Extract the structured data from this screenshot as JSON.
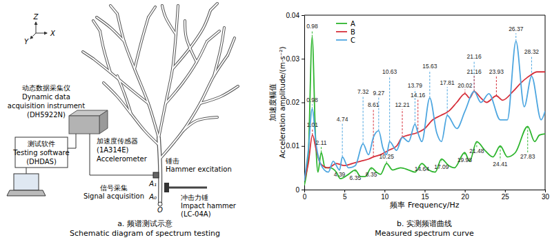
{
  "chart_data": {
    "type": "line",
    "title": "b. 实测频谱曲线",
    "subtitle": "Measured spectrum curve",
    "x_label": "频率 Frequency/Hz",
    "y_label": [
      "加速度幅值",
      "Acceleration amplitude/(m·s⁻²)"
    ],
    "xlim": [
      0,
      30
    ],
    "ylim": [
      0,
      0.04
    ],
    "xticks": [
      0,
      5,
      10,
      15,
      20,
      25,
      30
    ],
    "yticks": [
      0,
      0.01,
      0.02,
      0.03,
      0.04
    ],
    "grid": false,
    "legend": "upper left",
    "series": [
      {
        "name": "A",
        "color": "#2db52d",
        "x": [
          0,
          0.5,
          0.98,
          1.4,
          1.7,
          2.11,
          2.6,
          3.2,
          4,
          4.5,
          5.5,
          6.35,
          7,
          7.6,
          8.35,
          9,
          9.5,
          10.25,
          11,
          12,
          13,
          13.8,
          14.64,
          15.5,
          16.3,
          17.09,
          18,
          18.7,
          19.98,
          20.6,
          21.48,
          22.5,
          23.5,
          24.41,
          25.3,
          26.3,
          27.83,
          28.7,
          29.3,
          30
        ],
        "values": [
          0.001,
          0.008,
          0.035,
          0.012,
          0.004,
          0.0085,
          0.005,
          0.005,
          0.004,
          0.0025,
          0.0035,
          0.0045,
          0.003,
          0.003,
          0.005,
          0.004,
          0.0035,
          0.006,
          0.0045,
          0.005,
          0.0045,
          0.004,
          0.006,
          0.0045,
          0.004,
          0.007,
          0.0055,
          0.005,
          0.0085,
          0.0065,
          0.011,
          0.009,
          0.0075,
          0.01,
          0.0075,
          0.0085,
          0.0145,
          0.011,
          0.0125,
          0.0128
        ]
      },
      {
        "name": "B",
        "color": "#d62f3a",
        "x": [
          0,
          0.5,
          1.01,
          1.5,
          2,
          3,
          4,
          5,
          6,
          7,
          8,
          8.61,
          9.5,
          10.5,
          11.5,
          12.21,
          13,
          14,
          15,
          16,
          17,
          18,
          19,
          20.02,
          20.6,
          21.16,
          22,
          22.7,
          23.93,
          24.7,
          26,
          27,
          28,
          29,
          30
        ],
        "values": [
          0.002,
          0.006,
          0.0125,
          0.009,
          0.006,
          0.005,
          0.006,
          0.0055,
          0.006,
          0.0065,
          0.007,
          0.0075,
          0.008,
          0.009,
          0.01,
          0.012,
          0.0125,
          0.013,
          0.014,
          0.016,
          0.017,
          0.018,
          0.02,
          0.022,
          0.021,
          0.0225,
          0.021,
          0.02,
          0.0215,
          0.0205,
          0.0225,
          0.0245,
          0.026,
          0.027,
          0.027
        ]
      },
      {
        "name": "C",
        "color": "#4da6e0",
        "x": [
          0,
          0.5,
          0.98,
          1.5,
          2,
          3,
          3.6,
          4.39,
          4.74,
          5.5,
          6.35,
          7.32,
          8,
          8.61,
          9.27,
          9.8,
          10.25,
          10.63,
          11.5,
          12.21,
          13,
          13.79,
          14.16,
          14.64,
          15.63,
          16.5,
          17.09,
          17.81,
          19,
          20.02,
          21.16,
          22,
          23,
          24.41,
          25.3,
          26.37,
          27.4,
          28.32,
          29.5,
          30
        ],
        "values": [
          0.002,
          0.009,
          0.0185,
          0.01,
          0.006,
          0.004,
          0.0065,
          0.0045,
          0.0075,
          0.005,
          0.0055,
          0.0105,
          0.008,
          0.012,
          0.0135,
          0.0095,
          0.008,
          0.011,
          0.009,
          0.012,
          0.011,
          0.015,
          0.013,
          0.011,
          0.021,
          0.013,
          0.011,
          0.017,
          0.014,
          0.018,
          0.0225,
          0.02,
          0.022,
          0.016,
          0.016,
          0.034,
          0.019,
          0.026,
          0.016,
          0.018
        ]
      }
    ],
    "annotations": [
      {
        "text": "0.98",
        "x": 0.98,
        "y": 0.035,
        "label_y": 0.0375,
        "series": "A"
      },
      {
        "text": "0.98",
        "x": 0.98,
        "y": 0.0185,
        "label_y": 0.0205,
        "series": "C"
      },
      {
        "text": "1.01",
        "x": 1.01,
        "y": 0.0125,
        "label_y": 0.0148,
        "series": "B"
      },
      {
        "text": "2.11",
        "x": 2.11,
        "y": 0.0085,
        "label_y": 0.0108,
        "series": "A"
      },
      {
        "text": "4.39",
        "x": 4.39,
        "y": 0.0045,
        "label_y": 0.0034,
        "series": "C"
      },
      {
        "text": "4.74",
        "x": 4.74,
        "y": 0.0075,
        "label_y": 0.0162,
        "series": "C"
      },
      {
        "text": "6.35",
        "x": 6.35,
        "y": 0.0045,
        "label_y": 0.0027,
        "series": "A"
      },
      {
        "text": "7.32",
        "x": 7.32,
        "y": 0.0105,
        "label_y": 0.0225,
        "series": "C"
      },
      {
        "text": "8.35",
        "x": 8.35,
        "y": 0.005,
        "label_y": 0.0034,
        "series": "A"
      },
      {
        "text": "8.61",
        "x": 8.61,
        "y": 0.0075,
        "label_y": 0.0194,
        "series": "B"
      },
      {
        "text": "9.27",
        "x": 9.27,
        "y": 0.0135,
        "label_y": 0.0222,
        "series": "C"
      },
      {
        "text": "10.25",
        "x": 10.25,
        "y": 0.006,
        "label_y": 0.0076,
        "series": "A"
      },
      {
        "text": "10.63",
        "x": 10.63,
        "y": 0.011,
        "label_y": 0.027,
        "series": "C"
      },
      {
        "text": "12.21",
        "x": 12.21,
        "y": 0.012,
        "label_y": 0.0194,
        "series": "B"
      },
      {
        "text": "13.79",
        "x": 13.79,
        "y": 0.015,
        "label_y": 0.0239,
        "series": "C"
      },
      {
        "text": "14.16",
        "x": 14.16,
        "y": 0.013,
        "label_y": 0.0217,
        "series": "B"
      },
      {
        "text": "14.64",
        "x": 14.64,
        "y": 0.006,
        "label_y": 0.0048,
        "series": "A"
      },
      {
        "text": "15.63",
        "x": 15.63,
        "y": 0.021,
        "label_y": 0.0283,
        "series": "C"
      },
      {
        "text": "17.09",
        "x": 17.09,
        "y": 0.007,
        "label_y": 0.0052,
        "series": "A"
      },
      {
        "text": "17.81",
        "x": 17.81,
        "y": 0.017,
        "label_y": 0.0245,
        "series": "C"
      },
      {
        "text": "19.98",
        "x": 19.98,
        "y": 0.0085,
        "label_y": 0.0068,
        "series": "A"
      },
      {
        "text": "20.02",
        "x": 20.02,
        "y": 0.022,
        "label_y": 0.0239,
        "series": "B"
      },
      {
        "text": "21.16",
        "x": 21.16,
        "y": 0.0225,
        "label_y": 0.0305,
        "series": "C"
      },
      {
        "text": "21.16",
        "x": 21.16,
        "y": 0.0225,
        "label_y": 0.027,
        "series": "B"
      },
      {
        "text": "21.48",
        "x": 21.48,
        "y": 0.011,
        "label_y": 0.0088,
        "series": "A"
      },
      {
        "text": "23.93",
        "x": 23.93,
        "y": 0.0215,
        "label_y": 0.027,
        "series": "B"
      },
      {
        "text": "24.41",
        "x": 24.41,
        "y": 0.01,
        "label_y": 0.0058,
        "series": "A"
      },
      {
        "text": "26.37",
        "x": 26.37,
        "y": 0.034,
        "label_y": 0.0368,
        "series": "C"
      },
      {
        "text": "27.83",
        "x": 27.83,
        "y": 0.0145,
        "label_y": 0.0076,
        "series": "A"
      },
      {
        "text": "28.32",
        "x": 28.32,
        "y": 0.026,
        "label_y": 0.0316,
        "series": "C"
      }
    ]
  },
  "diagram": {
    "axes": {
      "z": "Z",
      "x": "X",
      "y": "Y"
    },
    "instrument": [
      "动态数据采集仪",
      "Dynamic data",
      "acquisition instrument",
      "(DH5922N)"
    ],
    "software": [
      "测试软件",
      "Testing software",
      "(DHDAS)"
    ],
    "accelerometer": [
      "加速度传感器",
      "(1A314E)",
      "Accelerometer"
    ],
    "signal": [
      "信号采集",
      "Signal acquisition"
    ],
    "hammer_excitation": [
      "锤击",
      "Hammer excitation"
    ],
    "impact_hammer": [
      "冲击力锤",
      "Impact hammer",
      "(LC-04A)"
    ],
    "points": [
      "A₁",
      "A₀",
      "O"
    ],
    "caption": [
      "a. 频谱测试示意",
      "Schematic diagram of spectrum testing"
    ]
  }
}
